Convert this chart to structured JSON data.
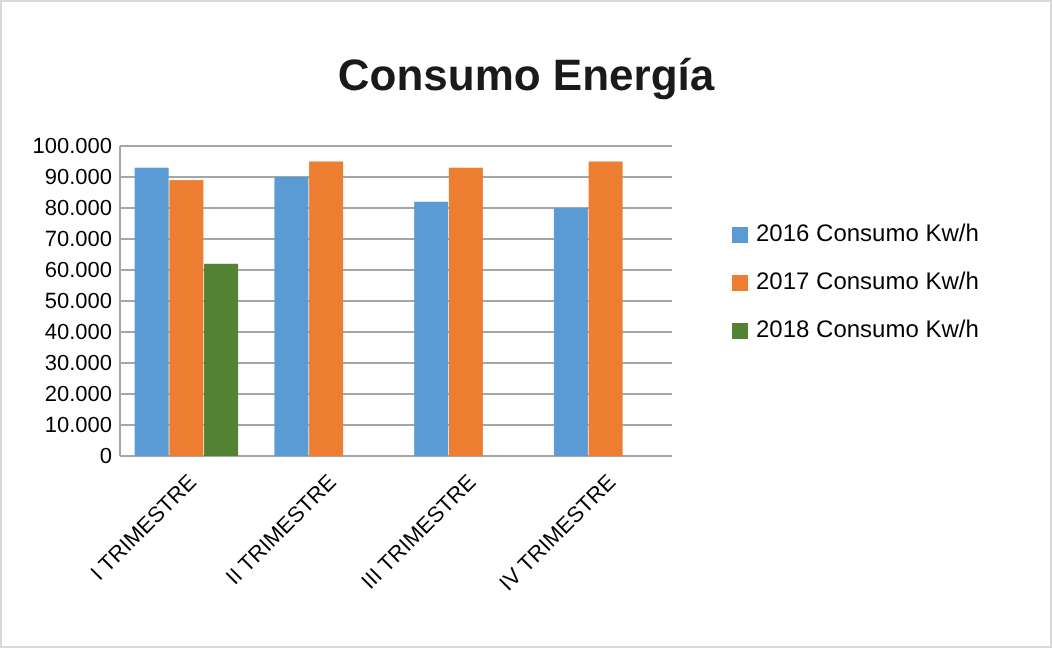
{
  "chart_data": {
    "type": "bar",
    "title": "Consumo Energía",
    "categories": [
      "I TRIMESTRE",
      "II TRIMESTRE",
      "III TRIMESTRE",
      "IV TRIMESTRE"
    ],
    "series": [
      {
        "name": "2016 Consumo Kw/h",
        "color": "#5b9bd5",
        "values": [
          93000,
          90000,
          82000,
          80000
        ]
      },
      {
        "name": "2017 Consumo Kw/h",
        "color": "#ed7d31",
        "values": [
          89000,
          95000,
          93000,
          95000
        ]
      },
      {
        "name": "2018 Consumo Kw/h",
        "color": "#548235",
        "values": [
          62000,
          null,
          null,
          null
        ]
      }
    ],
    "ylim": [
      0,
      100000
    ],
    "yticks": [
      {
        "value": 0,
        "label": "0"
      },
      {
        "value": 10000,
        "label": "10.000"
      },
      {
        "value": 20000,
        "label": "20.000"
      },
      {
        "value": 30000,
        "label": "30.000"
      },
      {
        "value": 40000,
        "label": "40.000"
      },
      {
        "value": 50000,
        "label": "50.000"
      },
      {
        "value": 60000,
        "label": "60.000"
      },
      {
        "value": 70000,
        "label": "70.000"
      },
      {
        "value": 80000,
        "label": "80.000"
      },
      {
        "value": 90000,
        "label": "90.000"
      },
      {
        "value": 100000,
        "label": "100.000"
      }
    ],
    "grid": "y",
    "legend": "right"
  }
}
